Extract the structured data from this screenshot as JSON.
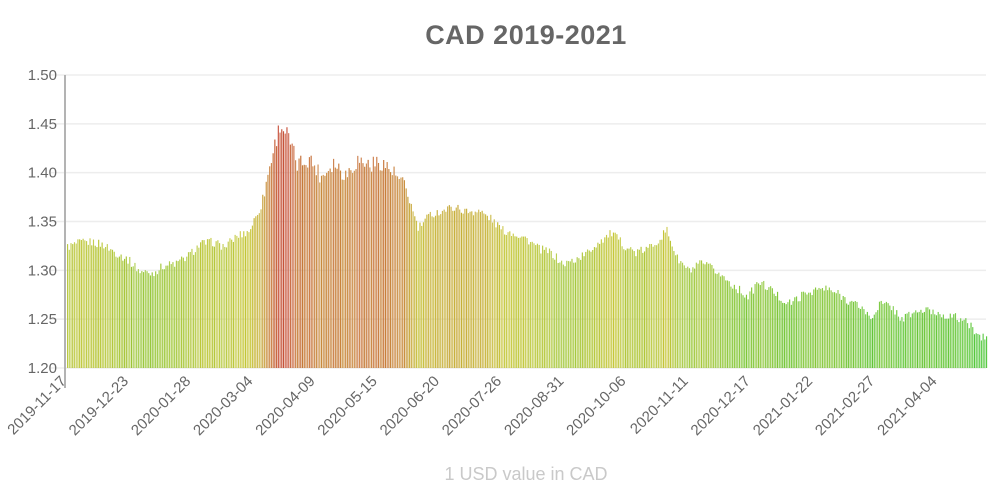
{
  "title": "CAD 2019-2021",
  "caption": "1 USD value in CAD",
  "chart_data": {
    "type": "bar",
    "title": "CAD 2019-2021",
    "xlabel": "1 USD value in CAD",
    "ylabel": "",
    "unit": "CAD per 1 USD",
    "bar_interval": "daily",
    "x_start": "2019-11-17",
    "x_end": "2021-05-02",
    "ylim": [
      1.2,
      1.5
    ],
    "grid": true,
    "legend": false,
    "y_ticks": [
      "1.20",
      "1.25",
      "1.30",
      "1.35",
      "1.40",
      "1.45",
      "1.50"
    ],
    "x_ticks": [
      "2019-11-17",
      "2019-12-23",
      "2020-01-28",
      "2020-03-04",
      "2020-04-09",
      "2020-05-15",
      "2020-06-20",
      "2020-07-26",
      "2020-08-31",
      "2020-10-06",
      "2020-11-11",
      "2020-12-17",
      "2021-01-22",
      "2021-02-27",
      "2021-04-04"
    ],
    "color_scale": {
      "description": "bar color encodes value: green = low, yellow = mid, red = high",
      "v_lo": 1.2,
      "hue_lo": 126,
      "v_hi": 1.45,
      "hue_hi": 8,
      "sat": 56,
      "light": 52
    },
    "keypoints_note": "[date, value of 1 USD in CAD] read from chart; daily bars are interpolated between keypoints",
    "keypoints": [
      [
        "2019-11-17",
        1.324
      ],
      [
        "2019-11-24",
        1.328
      ],
      [
        "2019-12-01",
        1.329
      ],
      [
        "2019-12-08",
        1.326
      ],
      [
        "2019-12-15",
        1.318
      ],
      [
        "2019-12-22",
        1.311
      ],
      [
        "2019-12-29",
        1.299
      ],
      [
        "2020-01-05",
        1.297
      ],
      [
        "2020-01-12",
        1.305
      ],
      [
        "2020-01-19",
        1.307
      ],
      [
        "2020-01-26",
        1.315
      ],
      [
        "2020-02-02",
        1.327
      ],
      [
        "2020-02-09",
        1.329
      ],
      [
        "2020-02-16",
        1.324
      ],
      [
        "2020-02-23",
        1.335
      ],
      [
        "2020-03-01",
        1.34
      ],
      [
        "2020-03-08",
        1.366
      ],
      [
        "2020-03-15",
        1.422
      ],
      [
        "2020-03-19",
        1.449
      ],
      [
        "2020-03-23",
        1.44
      ],
      [
        "2020-03-29",
        1.408
      ],
      [
        "2020-04-05",
        1.415
      ],
      [
        "2020-04-12",
        1.396
      ],
      [
        "2020-04-19",
        1.411
      ],
      [
        "2020-04-26",
        1.398
      ],
      [
        "2020-05-03",
        1.413
      ],
      [
        "2020-05-10",
        1.408
      ],
      [
        "2020-05-17",
        1.411
      ],
      [
        "2020-05-24",
        1.399
      ],
      [
        "2020-05-31",
        1.383
      ],
      [
        "2020-06-07",
        1.343
      ],
      [
        "2020-06-14",
        1.357
      ],
      [
        "2020-06-21",
        1.361
      ],
      [
        "2020-06-28",
        1.365
      ],
      [
        "2020-07-05",
        1.36
      ],
      [
        "2020-07-12",
        1.361
      ],
      [
        "2020-07-19",
        1.353
      ],
      [
        "2020-07-26",
        1.341
      ],
      [
        "2020-08-02",
        1.338
      ],
      [
        "2020-08-09",
        1.332
      ],
      [
        "2020-08-16",
        1.322
      ],
      [
        "2020-08-23",
        1.318
      ],
      [
        "2020-08-30",
        1.306
      ],
      [
        "2020-09-06",
        1.311
      ],
      [
        "2020-09-13",
        1.318
      ],
      [
        "2020-09-20",
        1.33
      ],
      [
        "2020-09-27",
        1.338
      ],
      [
        "2020-10-04",
        1.326
      ],
      [
        "2020-10-11",
        1.318
      ],
      [
        "2020-10-18",
        1.322
      ],
      [
        "2020-10-25",
        1.333
      ],
      [
        "2020-10-29",
        1.341
      ],
      [
        "2020-11-04",
        1.312
      ],
      [
        "2020-11-11",
        1.299
      ],
      [
        "2020-11-18",
        1.307
      ],
      [
        "2020-11-25",
        1.301
      ],
      [
        "2020-12-02",
        1.291
      ],
      [
        "2020-12-09",
        1.281
      ],
      [
        "2020-12-15",
        1.273
      ],
      [
        "2020-12-21",
        1.288
      ],
      [
        "2020-12-27",
        1.282
      ],
      [
        "2021-01-03",
        1.271
      ],
      [
        "2021-01-08",
        1.266
      ],
      [
        "2021-01-15",
        1.274
      ],
      [
        "2021-01-22",
        1.28
      ],
      [
        "2021-01-29",
        1.281
      ],
      [
        "2021-02-05",
        1.276
      ],
      [
        "2021-02-12",
        1.268
      ],
      [
        "2021-02-19",
        1.262
      ],
      [
        "2021-02-24",
        1.25
      ],
      [
        "2021-03-01",
        1.266
      ],
      [
        "2021-03-08",
        1.263
      ],
      [
        "2021-03-14",
        1.25
      ],
      [
        "2021-03-21",
        1.257
      ],
      [
        "2021-03-28",
        1.259
      ],
      [
        "2021-04-04",
        1.256
      ],
      [
        "2021-04-11",
        1.253
      ],
      [
        "2021-04-18",
        1.25
      ],
      [
        "2021-04-25",
        1.239
      ],
      [
        "2021-04-29",
        1.23
      ],
      [
        "2021-05-02",
        1.233
      ]
    ]
  }
}
